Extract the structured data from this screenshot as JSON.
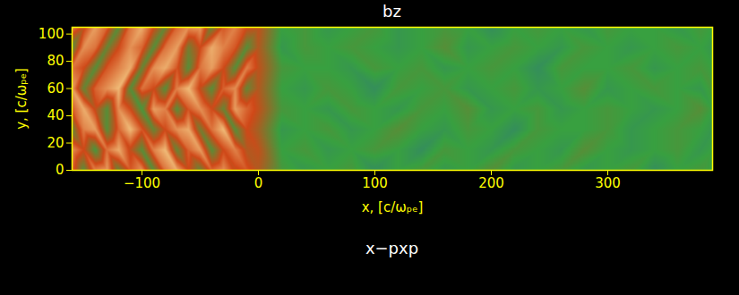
{
  "chart_data": {
    "type": "heatmap",
    "title": "bz",
    "x_label": "x, [c/ωₚₑ]",
    "y_label": "y, [c/ωₚₑ]",
    "annotations": [
      "x−pxp"
    ],
    "xlim": [
      -160,
      390
    ],
    "ylim": [
      0,
      105
    ],
    "xticks": [
      -100,
      0,
      100,
      200,
      300
    ],
    "yticks": [
      0,
      20,
      40,
      60,
      80,
      100
    ],
    "zlim": [
      -1,
      2
    ],
    "colors": [
      "#2848c8",
      "#38a040",
      "#d04818",
      "#f8d890"
    ],
    "cells": {
      "x": [
        -160,
        -150,
        -140,
        -130,
        -120,
        -110,
        -100,
        -90,
        -80,
        -70,
        -60,
        -50,
        -40,
        -30,
        -20,
        -10,
        0,
        20,
        40,
        60,
        80,
        100,
        120,
        140,
        160,
        180,
        200,
        220,
        240,
        260,
        280,
        300,
        320,
        340,
        360,
        380,
        390
      ],
      "y": [
        0,
        15,
        30,
        45,
        60,
        75,
        90,
        105
      ],
      "values": [
        [
          1.2,
          0.2,
          1.4,
          1.6,
          0.3,
          1.1,
          1.5,
          0.2,
          1.3,
          1.7,
          1.0,
          0.3,
          1.2,
          1.5,
          0.9,
          1.1,
          0.8,
          0.1,
          -0.1,
          0.0,
          0.1,
          -0.2,
          0.0,
          0.1,
          -0.1,
          0.0,
          0.2,
          -0.1,
          0.0,
          0.1,
          -0.1,
          0.0,
          0.1,
          -0.2,
          0.0,
          0.1,
          0.0
        ],
        [
          1.5,
          1.0,
          0.1,
          1.3,
          1.7,
          0.9,
          0.2,
          1.4,
          1.8,
          0.3,
          1.2,
          1.6,
          0.2,
          1.0,
          1.4,
          0.8,
          0.9,
          0.0,
          0.1,
          -0.1,
          0.0,
          0.1,
          0.0,
          -0.2,
          0.1,
          0.0,
          -0.1,
          0.1,
          0.0,
          -0.1,
          0.2,
          0.0,
          -0.1,
          0.0,
          0.1,
          -0.1,
          0.0
        ],
        [
          0.3,
          1.4,
          1.6,
          0.2,
          1.2,
          1.8,
          1.1,
          0.3,
          1.0,
          1.5,
          1.7,
          0.4,
          1.3,
          1.8,
          0.2,
          1.0,
          0.7,
          -0.1,
          0.0,
          0.1,
          -0.1,
          0.0,
          0.2,
          0.0,
          -0.1,
          0.1,
          0.0,
          -0.2,
          0.1,
          0.0,
          0.0,
          0.1,
          -0.1,
          0.0,
          0.1,
          0.0,
          -0.1
        ],
        [
          1.1,
          1.7,
          0.9,
          0.2,
          1.5,
          1.0,
          0.1,
          1.6,
          1.4,
          0.2,
          1.1,
          1.5,
          1.0,
          0.3,
          1.6,
          1.2,
          0.9,
          0.1,
          0.0,
          -0.1,
          0.1,
          0.0,
          -0.1,
          0.1,
          0.0,
          0.2,
          -0.1,
          0.0,
          0.1,
          -0.1,
          0.0,
          0.1,
          0.0,
          -0.1,
          0.0,
          0.2,
          0.0
        ],
        [
          1.6,
          0.3,
          1.2,
          1.5,
          1.8,
          0.2,
          1.3,
          1.0,
          0.2,
          1.4,
          1.8,
          0.9,
          0.2,
          1.2,
          1.5,
          0.3,
          0.8,
          0.0,
          -0.1,
          0.1,
          0.0,
          -0.2,
          0.1,
          0.0,
          0.1,
          -0.1,
          0.0,
          0.1,
          -0.1,
          0.0,
          0.2,
          -0.1,
          0.0,
          0.1,
          0.0,
          -0.1,
          0.1
        ],
        [
          1.3,
          1.0,
          0.2,
          1.1,
          1.4,
          1.7,
          0.3,
          1.5,
          1.7,
          1.1,
          0.2,
          1.3,
          1.6,
          1.0,
          0.2,
          1.4,
          0.9,
          0.1,
          0.0,
          0.0,
          -0.1,
          0.1,
          0.0,
          0.1,
          -0.1,
          0.0,
          0.1,
          0.0,
          -0.2,
          0.1,
          0.0,
          0.0,
          0.1,
          -0.1,
          0.0,
          0.1,
          0.0
        ],
        [
          0.2,
          1.5,
          1.3,
          0.3,
          1.0,
          1.5,
          1.2,
          0.2,
          1.3,
          1.6,
          0.4,
          1.0,
          1.7,
          1.4,
          1.1,
          0.2,
          0.8,
          -0.1,
          0.1,
          0.0,
          0.1,
          0.0,
          -0.1,
          0.0,
          0.2,
          -0.1,
          0.0,
          0.1,
          0.0,
          -0.1,
          0.1,
          0.0,
          -0.1,
          0.0,
          0.1,
          0.0,
          -0.1
        ],
        [
          1.4,
          0.9,
          1.6,
          1.2,
          0.2,
          1.3,
          1.7,
          1.0,
          0.3,
          1.2,
          1.5,
          1.6,
          0.3,
          1.1,
          1.4,
          1.0,
          0.9,
          0.0,
          0.1,
          -0.1,
          0.0,
          0.1,
          -0.1,
          0.0,
          0.1,
          0.0,
          -0.2,
          0.0,
          0.1,
          0.0,
          -0.1,
          0.1,
          0.0,
          0.0,
          -0.1,
          0.1,
          0.0
        ]
      ]
    }
  }
}
